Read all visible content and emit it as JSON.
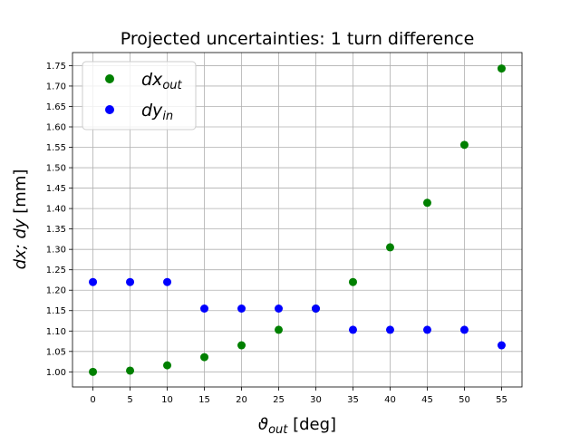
{
  "chart_data": {
    "type": "scatter",
    "title": "Projected uncertainties: 1 turn difference",
    "xlabel": {
      "symbol": "ϑ",
      "sub": "out",
      "unit": " [deg]"
    },
    "ylabel": {
      "text": "dx; dy",
      "unit": " [mm]"
    },
    "x_ticks": [
      "0",
      "5",
      "10",
      "15",
      "20",
      "25",
      "30",
      "35",
      "40",
      "45",
      "50",
      "55"
    ],
    "y_ticks": [
      "1.00",
      "1.05",
      "1.10",
      "1.15",
      "1.20",
      "1.25",
      "1.30",
      "1.35",
      "1.40",
      "1.45",
      "1.50",
      "1.55",
      "1.60",
      "1.65",
      "1.70",
      "1.75"
    ],
    "xlim": [
      -2.75,
      57.75
    ],
    "ylim": [
      0.963,
      1.782
    ],
    "grid": true,
    "legend_position": "top-left",
    "series": [
      {
        "name": "dx",
        "name_sub": "out",
        "color": "#008000",
        "x": [
          0,
          5,
          10,
          15,
          20,
          25,
          30,
          35,
          40,
          45,
          50,
          55
        ],
        "y": [
          1.0,
          1.003,
          1.016,
          1.036,
          1.065,
          1.103,
          1.155,
          1.22,
          1.305,
          1.414,
          1.556,
          1.743
        ]
      },
      {
        "name": "dy",
        "name_sub": "in",
        "color": "#0000ff",
        "x": [
          0,
          5,
          10,
          15,
          20,
          25,
          30,
          35,
          40,
          45,
          50,
          55
        ],
        "y": [
          1.22,
          1.22,
          1.22,
          1.155,
          1.155,
          1.155,
          1.155,
          1.103,
          1.103,
          1.103,
          1.103,
          1.065
        ]
      }
    ]
  }
}
